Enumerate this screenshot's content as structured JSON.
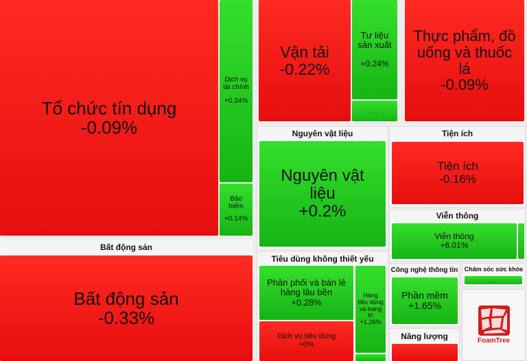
{
  "chart_data": {
    "type": "treemap",
    "groups": [
      {
        "label": "",
        "tiles": [
          {
            "name": "Tổ chức tín dụng",
            "change": "-0.09%"
          },
          {
            "name": "Dịch vụ tài chính",
            "change": "+0.24%"
          },
          {
            "name": "Bảo hiểm",
            "change": "+0.14%"
          }
        ]
      },
      {
        "label": "Bất động sản",
        "tiles": [
          {
            "name": "Bất động sản",
            "change": "-0.33%"
          }
        ]
      },
      {
        "label": "",
        "tiles": [
          {
            "name": "Vận tải",
            "change": "-0.22%"
          },
          {
            "name": "Tư liệu sản xuất",
            "change": "+0.24%"
          },
          {
            "name": "Thực phẩm, đồ uống và thuốc lá",
            "change": "-0.09%"
          }
        ]
      },
      {
        "label": "Nguyên vật liệu",
        "tiles": [
          {
            "name": "Nguyên vật liệu",
            "change": "+0.2%"
          }
        ]
      },
      {
        "label": "Tiện ích",
        "tiles": [
          {
            "name": "Tiện ích",
            "change": "-0.16%"
          }
        ]
      },
      {
        "label": "Viễn thông",
        "tiles": [
          {
            "name": "Viễn thông",
            "change": "+6.01%"
          }
        ]
      },
      {
        "label": "Tiêu dùng không thiết yếu",
        "tiles": [
          {
            "name": "Phân phối và bán lẻ hàng lâu bền",
            "change": "+0.28%"
          },
          {
            "name": "Hàng tiêu dùng và trang trí",
            "change": "+1.26%"
          },
          {
            "name": "Dịch vụ tiêu dùng",
            "change": "+0%"
          }
        ]
      },
      {
        "label": "Công nghệ thông tin",
        "tiles": [
          {
            "name": "Phần mềm",
            "change": "+1.65%"
          }
        ]
      },
      {
        "label": "Chăm sóc sức khỏe",
        "tiles": []
      },
      {
        "label": "Năng lượng",
        "tiles": []
      }
    ],
    "more_marker": "...",
    "colors": {
      "negative": "#f01010",
      "positive": "#22c81e"
    }
  },
  "logo": {
    "text": "FoamTree"
  }
}
